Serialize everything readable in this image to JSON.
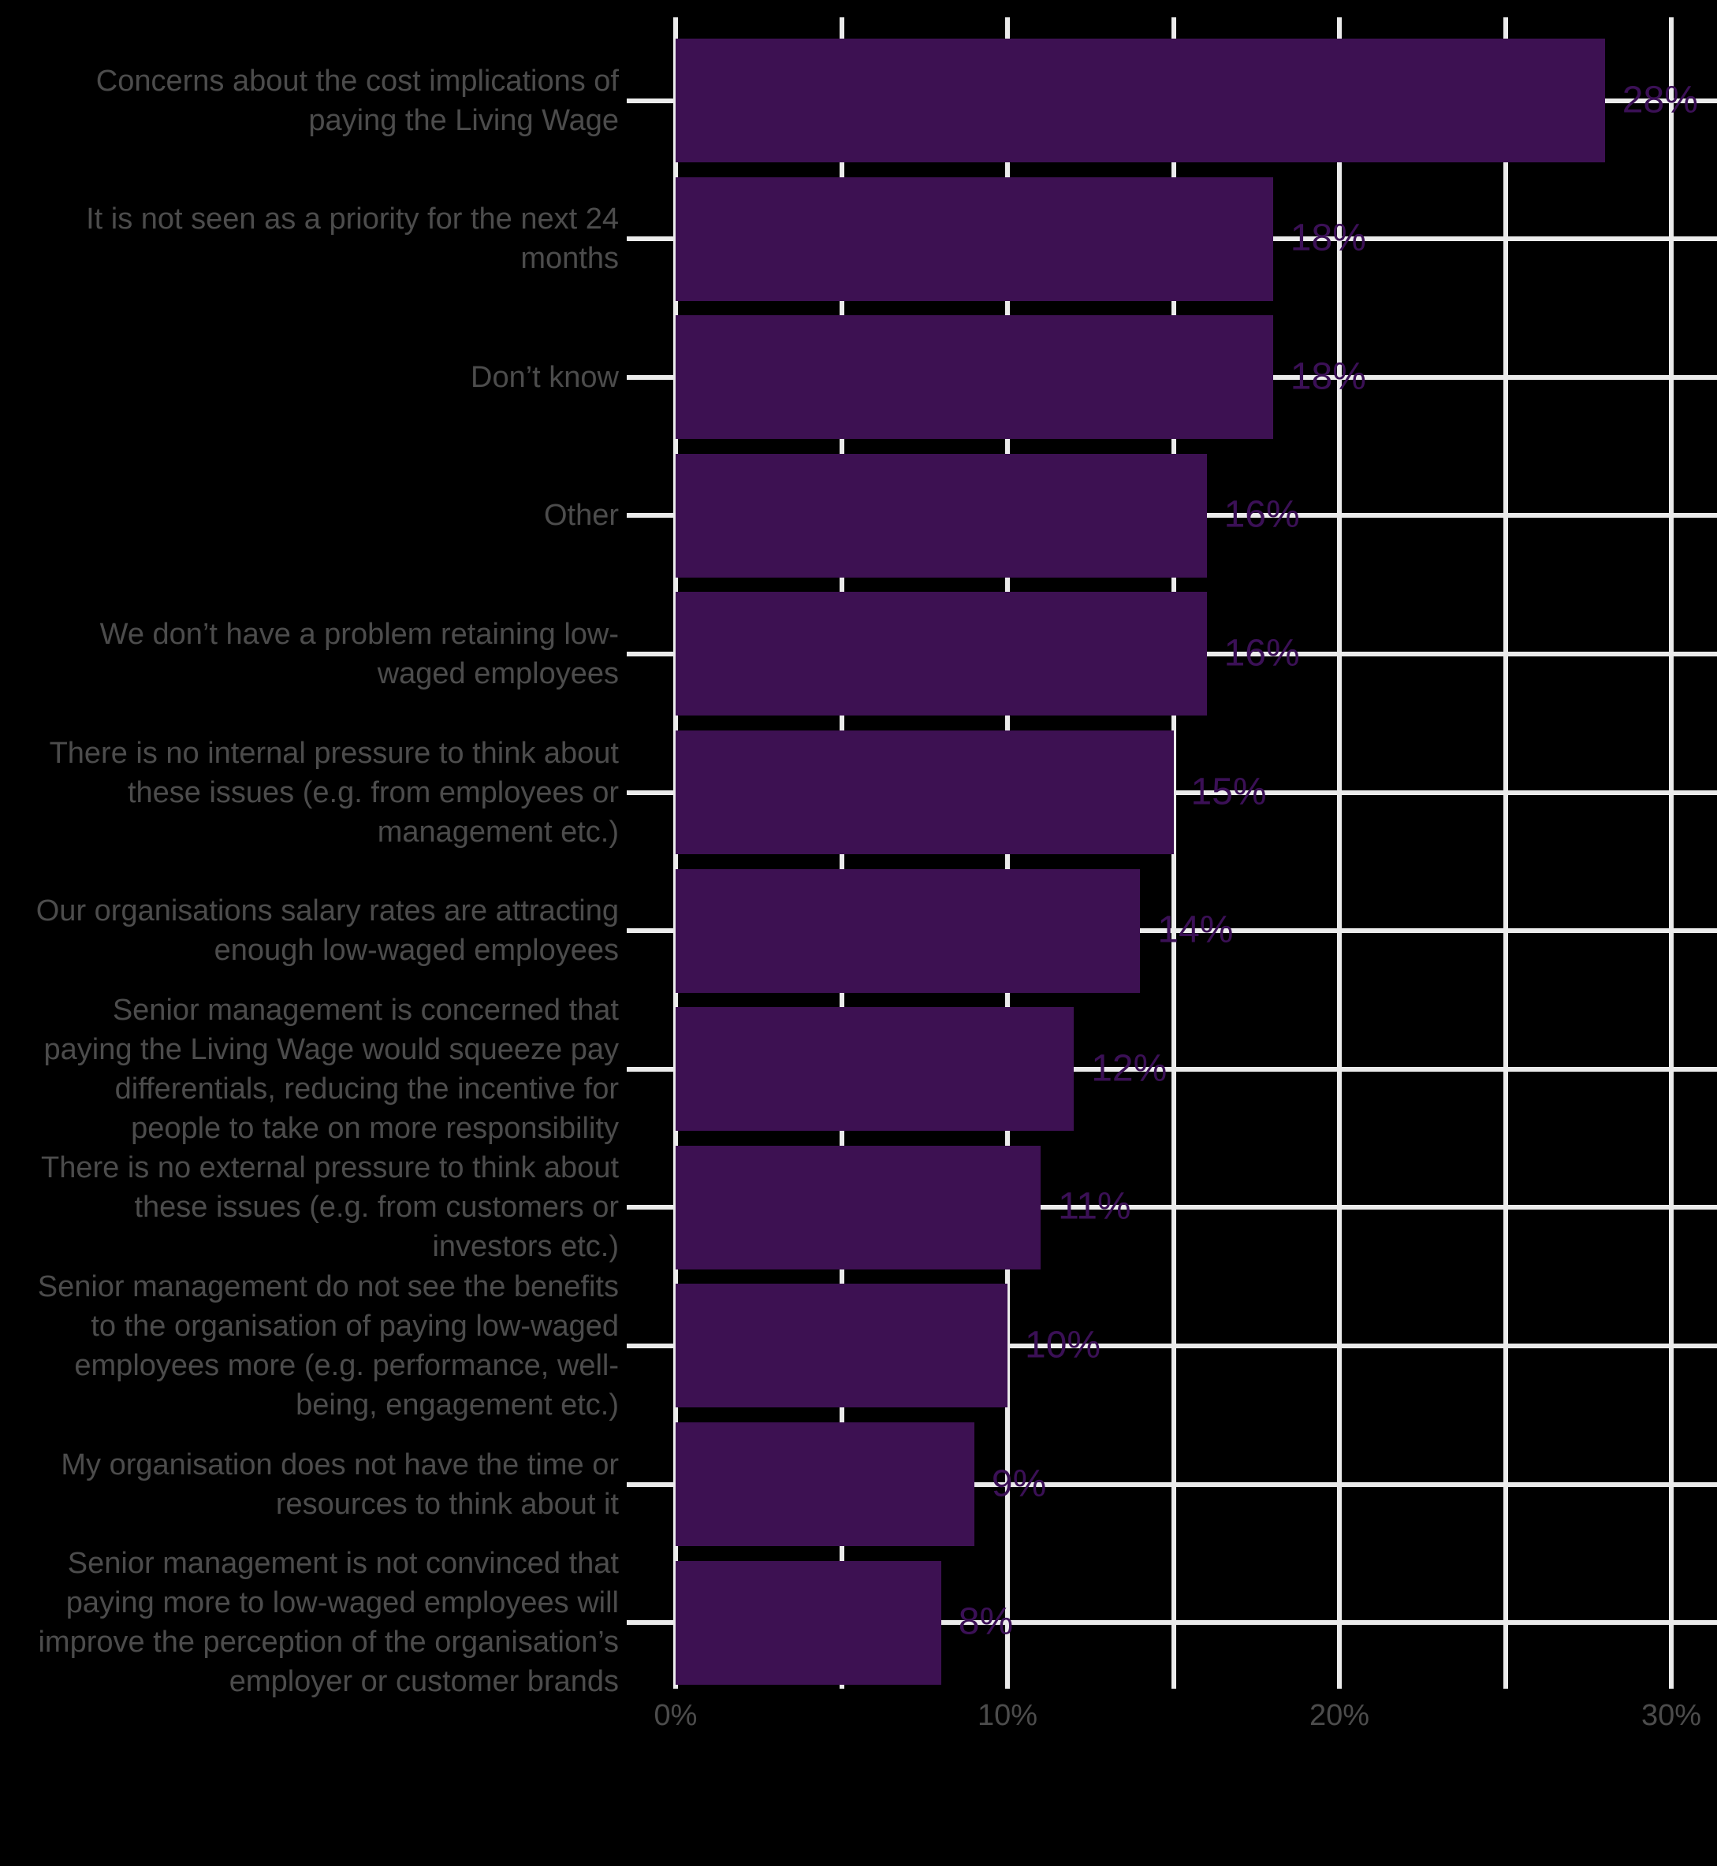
{
  "chart_data": {
    "type": "bar",
    "orientation": "horizontal",
    "title": "",
    "xlabel": "",
    "ylabel": "",
    "categories": [
      "Concerns about the cost implications of paying the Living Wage",
      "It is not seen as a priority for the next 24 months",
      "Don’t know",
      "Other",
      "We don’t have a problem retaining low-waged employees",
      "There is no internal pressure to think about these issues (e.g. from employees or management etc.)",
      "Our organisations salary rates are attracting enough low-waged employees",
      "Senior management is concerned that paying the Living Wage would squeeze pay differentials, reducing the incentive for people to take on more responsibility",
      "There is no external pressure to think about these issues (e.g. from customers or investors etc.)",
      "Senior management do not see the benefits to the organisation of paying low-waged employees more (e.g. performance, well-being, engagement etc.)",
      "My organisation does not have the time or resources to think about it",
      "Senior management is not convinced that paying more to low-waged employees will improve the perception of the organisation’s employer or customer brands"
    ],
    "values": [
      28,
      18,
      18,
      16,
      16,
      15,
      14,
      12,
      11,
      10,
      9,
      8
    ],
    "value_labels": [
      "28%",
      "18%",
      "18%",
      "16%",
      "16%",
      "15%",
      "14%",
      "12%",
      "11%",
      "10%",
      "9%",
      "8%"
    ],
    "x_ticks": [
      "0%",
      "10%",
      "20%",
      "30%"
    ],
    "x_tick_values": [
      0,
      10,
      20,
      30
    ],
    "xlim": [
      0,
      30
    ],
    "gridline_step": 5,
    "grid": true,
    "legend": false,
    "colors": {
      "bar": "#3d1152",
      "value_label": "#3b1056",
      "category_label": "#4c4c4c",
      "tick_label": "#4c4c4c",
      "gridline": "#ebebeb",
      "background": "#000000"
    }
  }
}
